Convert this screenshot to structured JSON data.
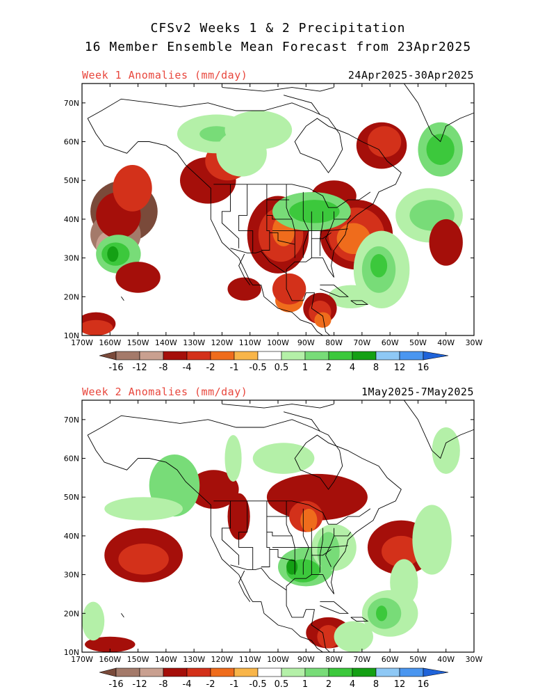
{
  "header": {
    "line1": "CFSv2 Weeks 1 & 2 Precipitation",
    "line2": "16 Member Ensemble Mean Forecast from 23Apr2025"
  },
  "panels": [
    {
      "id": "week1",
      "label": "Week 1 Anomalies (mm/day)",
      "dates": "24Apr2025-30Apr2025",
      "blobs": [
        {
          "c": 0,
          "cx": 155,
          "cy": 42,
          "rx": 12,
          "ry": 8
        },
        {
          "c": 1,
          "cx": 158,
          "cy": 36,
          "rx": 9,
          "ry": 6
        },
        {
          "c": 2,
          "cx": 160,
          "cy": 33,
          "rx": 5,
          "ry": 4
        },
        {
          "c": 3,
          "cx": 157,
          "cy": 41,
          "rx": 8,
          "ry": 6
        },
        {
          "c": 4,
          "cx": 152,
          "cy": 48,
          "rx": 7,
          "ry": 6
        },
        {
          "c": 3,
          "cx": 125,
          "cy": 50,
          "rx": 10,
          "ry": 6
        },
        {
          "c": 4,
          "cx": 118,
          "cy": 55,
          "rx": 8,
          "ry": 5
        },
        {
          "c": 3,
          "cx": 100,
          "cy": 36,
          "rx": 11,
          "ry": 10
        },
        {
          "c": 4,
          "cx": 99,
          "cy": 36,
          "rx": 8,
          "ry": 7
        },
        {
          "c": 5,
          "cx": 98,
          "cy": 37,
          "rx": 4,
          "ry": 4
        },
        {
          "c": 5,
          "cx": 96,
          "cy": 19,
          "rx": 5,
          "ry": 3
        },
        {
          "c": 4,
          "cx": 96,
          "cy": 22,
          "rx": 6,
          "ry": 4
        },
        {
          "c": 3,
          "cx": 72,
          "cy": 36,
          "rx": 13,
          "ry": 9
        },
        {
          "c": 4,
          "cx": 72,
          "cy": 36,
          "rx": 10,
          "ry": 7
        },
        {
          "c": 5,
          "cx": 73,
          "cy": 35,
          "rx": 6,
          "ry": 4
        },
        {
          "c": 3,
          "cx": 80,
          "cy": 46,
          "rx": 8,
          "ry": 4
        },
        {
          "c": 3,
          "cx": 63,
          "cy": 59,
          "rx": 9,
          "ry": 6
        },
        {
          "c": 4,
          "cx": 62,
          "cy": 60,
          "rx": 6,
          "ry": 4
        },
        {
          "c": 9,
          "cx": 42,
          "cy": 58,
          "rx": 8,
          "ry": 7
        },
        {
          "c": 10,
          "cx": 42,
          "cy": 58,
          "rx": 5,
          "ry": 4
        },
        {
          "c": 8,
          "cx": 63,
          "cy": 27,
          "rx": 10,
          "ry": 10
        },
        {
          "c": 9,
          "cx": 64,
          "cy": 27,
          "rx": 6,
          "ry": 6
        },
        {
          "c": 10,
          "cx": 64,
          "cy": 28,
          "rx": 3,
          "ry": 3
        },
        {
          "c": 8,
          "cx": 74,
          "cy": 20,
          "rx": 8,
          "ry": 3
        },
        {
          "c": 9,
          "cx": 88,
          "cy": 42,
          "rx": 14,
          "ry": 5
        },
        {
          "c": 10,
          "cx": 87,
          "cy": 42,
          "rx": 9,
          "ry": 3
        },
        {
          "c": 8,
          "cx": 46,
          "cy": 41,
          "rx": 12,
          "ry": 7
        },
        {
          "c": 9,
          "cx": 45,
          "cy": 41,
          "rx": 8,
          "ry": 4
        },
        {
          "c": 8,
          "cx": 122,
          "cy": 62,
          "rx": 14,
          "ry": 5
        },
        {
          "c": 9,
          "cx": 122,
          "cy": 62,
          "rx": 6,
          "ry": 2
        },
        {
          "c": 8,
          "cx": 107,
          "cy": 63,
          "rx": 12,
          "ry": 5
        },
        {
          "c": 9,
          "cx": 157,
          "cy": 31,
          "rx": 8,
          "ry": 5
        },
        {
          "c": 10,
          "cx": 158,
          "cy": 31,
          "rx": 5,
          "ry": 3
        },
        {
          "c": 11,
          "cx": 159,
          "cy": 31,
          "rx": 2,
          "ry": 2
        },
        {
          "c": 8,
          "cx": 113,
          "cy": 57,
          "rx": 9,
          "ry": 6
        },
        {
          "c": 3,
          "cx": 150,
          "cy": 25,
          "rx": 8,
          "ry": 4
        },
        {
          "c": 3,
          "cx": 165,
          "cy": 13,
          "rx": 7,
          "ry": 3
        },
        {
          "c": 4,
          "cx": 165,
          "cy": 12,
          "rx": 6,
          "ry": 2
        },
        {
          "c": 3,
          "cx": 85,
          "cy": 17,
          "rx": 6,
          "ry": 4
        },
        {
          "c": 4,
          "cx": 85,
          "cy": 16,
          "rx": 4,
          "ry": 3
        },
        {
          "c": 5,
          "cx": 84,
          "cy": 14,
          "rx": 3,
          "ry": 2
        },
        {
          "c": 3,
          "cx": 112,
          "cy": 22,
          "rx": 6,
          "ry": 3
        },
        {
          "c": 3,
          "cx": 40,
          "cy": 34,
          "rx": 6,
          "ry": 6
        }
      ]
    },
    {
      "id": "week2",
      "label": "Week 2 Anomalies (mm/day)",
      "dates": "1May2025-7May2025",
      "blobs": [
        {
          "c": 3,
          "cx": 148,
          "cy": 35,
          "rx": 14,
          "ry": 7
        },
        {
          "c": 4,
          "cx": 148,
          "cy": 34,
          "rx": 9,
          "ry": 4
        },
        {
          "c": 3,
          "cx": 123,
          "cy": 52,
          "rx": 9,
          "ry": 5
        },
        {
          "c": 3,
          "cx": 86,
          "cy": 50,
          "rx": 18,
          "ry": 6
        },
        {
          "c": 4,
          "cx": 90,
          "cy": 45,
          "rx": 6,
          "ry": 4
        },
        {
          "c": 5,
          "cx": 89,
          "cy": 44,
          "rx": 3,
          "ry": 3
        },
        {
          "c": 3,
          "cx": 56,
          "cy": 37,
          "rx": 12,
          "ry": 7
        },
        {
          "c": 4,
          "cx": 56,
          "cy": 36,
          "rx": 7,
          "ry": 4
        },
        {
          "c": 3,
          "cx": 82,
          "cy": 15,
          "rx": 8,
          "ry": 4
        },
        {
          "c": 4,
          "cx": 82,
          "cy": 14,
          "rx": 4,
          "ry": 3
        },
        {
          "c": 3,
          "cx": 114,
          "cy": 45,
          "rx": 4,
          "ry": 6
        },
        {
          "c": 3,
          "cx": 160,
          "cy": 12,
          "rx": 9,
          "ry": 2
        },
        {
          "c": 9,
          "cx": 90,
          "cy": 32,
          "rx": 10,
          "ry": 5
        },
        {
          "c": 10,
          "cx": 91,
          "cy": 31,
          "rx": 6,
          "ry": 3
        },
        {
          "c": 11,
          "cx": 95,
          "cy": 32,
          "rx": 2,
          "ry": 2
        },
        {
          "c": 8,
          "cx": 80,
          "cy": 37,
          "rx": 8,
          "ry": 6
        },
        {
          "c": 9,
          "cx": 82,
          "cy": 36,
          "rx": 4,
          "ry": 5
        },
        {
          "c": 9,
          "cx": 137,
          "cy": 53,
          "rx": 9,
          "ry": 8
        },
        {
          "c": 8,
          "cx": 60,
          "cy": 20,
          "rx": 10,
          "ry": 6
        },
        {
          "c": 9,
          "cx": 62,
          "cy": 20,
          "rx": 6,
          "ry": 4
        },
        {
          "c": 10,
          "cx": 63,
          "cy": 20,
          "rx": 2,
          "ry": 2
        },
        {
          "c": 8,
          "cx": 73,
          "cy": 14,
          "rx": 7,
          "ry": 4
        },
        {
          "c": 8,
          "cx": 45,
          "cy": 39,
          "rx": 7,
          "ry": 9
        },
        {
          "c": 8,
          "cx": 55,
          "cy": 28,
          "rx": 5,
          "ry": 6
        },
        {
          "c": 8,
          "cx": 98,
          "cy": 60,
          "rx": 11,
          "ry": 4
        },
        {
          "c": 8,
          "cx": 40,
          "cy": 62,
          "rx": 5,
          "ry": 6
        },
        {
          "c": 8,
          "cx": 116,
          "cy": 60,
          "rx": 3,
          "ry": 6
        },
        {
          "c": 8,
          "cx": 166,
          "cy": 18,
          "rx": 4,
          "ry": 5
        },
        {
          "c": 8,
          "cx": 148,
          "cy": 47,
          "rx": 14,
          "ry": 3
        }
      ]
    }
  ],
  "legend": {
    "labels": [
      "-16",
      "-12",
      "-8",
      "-4",
      "-2",
      "-1",
      "-0.5",
      "0.5",
      "1",
      "2",
      "4",
      "8",
      "12",
      "16"
    ],
    "colors": [
      "#7a4a3a",
      "#a47a6a",
      "#c9a090",
      "#a50f0a",
      "#d3311a",
      "#ef6c1c",
      "#f8b549",
      "#ffffff",
      "#b4f0a8",
      "#78dc78",
      "#3cc83c",
      "#14a014",
      "#8ec8f5",
      "#4a96f0",
      "#1f63d9"
    ]
  },
  "axes": {
    "lat_labels": [
      "70N",
      "60N",
      "50N",
      "40N",
      "30N",
      "20N",
      "10N"
    ],
    "lon_labels": [
      "170W",
      "160W",
      "150W",
      "140W",
      "130W",
      "120W",
      "110W",
      "100W",
      "90W",
      "80W",
      "70W",
      "60W",
      "50W",
      "40W",
      "30W"
    ]
  }
}
